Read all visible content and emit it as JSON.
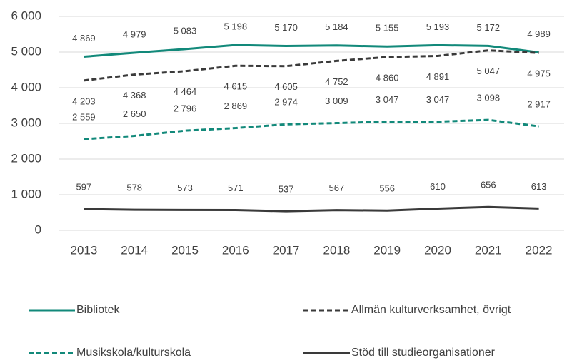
{
  "chart_data": {
    "type": "line",
    "categories": [
      "2013",
      "2014",
      "2015",
      "2016",
      "2017",
      "2018",
      "2019",
      "2020",
      "2021",
      "2022"
    ],
    "ylim": [
      0,
      6000
    ],
    "yticks": [
      0,
      {
        "value": 1000,
        "label": "1 000"
      },
      {
        "value": 2000,
        "label": "2 000"
      },
      {
        "value": 3000,
        "label": "3 000"
      },
      {
        "value": 4000,
        "label": "4 000"
      },
      {
        "value": 5000,
        "label": "5 000"
      },
      {
        "value": 6000,
        "label": "6 000"
      }
    ],
    "grid": true,
    "legend": "bottom",
    "series": [
      {
        "name": "Bibliotek",
        "color": "#12897a",
        "style": "solid",
        "values": [
          4869,
          4979,
          5083,
          5198,
          5170,
          5184,
          5155,
          5193,
          5172,
          4989
        ],
        "value_labels": [
          "4 869",
          "4 979",
          "5 083",
          "5 198",
          "5 170",
          "5 184",
          "5 155",
          "5 193",
          "5 172",
          "4 989"
        ]
      },
      {
        "name": "Allmän kulturverksamhet, övrigt",
        "color": "#3a3a3a",
        "style": "dashed",
        "values": [
          4203,
          4368,
          4464,
          4615,
          4605,
          4752,
          4860,
          4891,
          5047,
          4975
        ],
        "value_labels": [
          "4 203",
          "4 368",
          "4 464",
          "4 615",
          "4 605",
          "4 752",
          "4 860",
          "4 891",
          "5 047",
          "4 975"
        ]
      },
      {
        "name": "Musikskola/kulturskola",
        "color": "#12897a",
        "style": "dashed",
        "values": [
          2559,
          2650,
          2796,
          2869,
          2974,
          3009,
          3047,
          3047,
          3098,
          2917
        ],
        "value_labels": [
          "2 559",
          "2 650",
          "2 796",
          "2 869",
          "2 974",
          "3 009",
          "3 047",
          "3 047",
          "3 098",
          "2 917"
        ]
      },
      {
        "name": "Stöd till studieorganisationer",
        "color": "#3a3a3a",
        "style": "solid",
        "values": [
          597,
          578,
          573,
          571,
          537,
          567,
          556,
          610,
          656,
          613
        ],
        "value_labels": [
          "597",
          "578",
          "573",
          "571",
          "537",
          "567",
          "556",
          "610",
          "656",
          "613"
        ]
      }
    ]
  }
}
